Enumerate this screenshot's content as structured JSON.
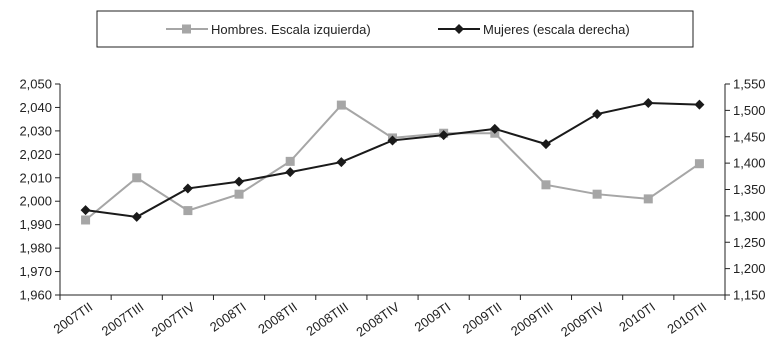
{
  "chart_data": {
    "type": "line",
    "categories": [
      "2007TII",
      "2007TIII",
      "2007TIV",
      "2008TI",
      "2008TII",
      "2008TIII",
      "2008TIV",
      "2009TI",
      "2009TII",
      "2009TIII",
      "2009TIV",
      "2010TI",
      "2010TII"
    ],
    "y_left": {
      "min": 1960,
      "max": 2050,
      "step": 10,
      "tick_labels": [
        "1,960",
        "1,970",
        "1,980",
        "1,990",
        "2,000",
        "2,010",
        "2,020",
        "2,030",
        "2,040",
        "2,050"
      ]
    },
    "y_right": {
      "min": 1150,
      "max": 1550,
      "step": 50,
      "tick_labels": [
        "1,150",
        "1,200",
        "1,250",
        "1,300",
        "1,350",
        "1,400",
        "1,450",
        "1,500",
        "1,550"
      ]
    },
    "series": [
      {
        "name": "Hombres. Escala izquierda)",
        "axis": "left",
        "color": "#a6a6a6",
        "marker": "square",
        "values": [
          1992,
          2010,
          1996,
          2003,
          2017,
          2041,
          2027,
          2029,
          2029,
          2007,
          2003,
          2001,
          2016
        ]
      },
      {
        "name": "Mujeres (escala derecha)",
        "axis": "right",
        "color": "#1a1a1a",
        "marker": "diamond",
        "values": [
          1311,
          1298,
          1352,
          1365,
          1383,
          1402,
          1443,
          1453,
          1465,
          1436,
          1493,
          1514,
          1511
        ]
      }
    ],
    "legend_position": "top",
    "grid": false
  }
}
